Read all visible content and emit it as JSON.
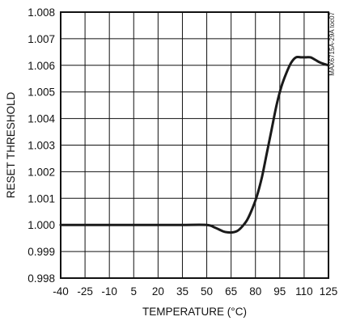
{
  "chart_data": {
    "type": "line",
    "title": "",
    "xlabel": "TEMPERATURE (°C)",
    "ylabel": "RESET THRESHOLD",
    "xlim": [
      -40,
      125
    ],
    "ylim": [
      0.998,
      1.008
    ],
    "x_ticks": [
      -40,
      -25,
      -10,
      5,
      20,
      35,
      50,
      65,
      80,
      95,
      110,
      125
    ],
    "y_ticks": [
      0.998,
      0.999,
      1.0,
      1.001,
      1.002,
      1.003,
      1.004,
      1.005,
      1.006,
      1.007,
      1.008
    ],
    "y_tick_labels": [
      "0.998",
      "0.999",
      "1.000",
      "1.001",
      "1.002",
      "1.003",
      "1.004",
      "1.005",
      "1.006",
      "1.007",
      "1.008"
    ],
    "grid": true,
    "legend": "none",
    "line_color": "#1a1a1a",
    "side_note": "MAX6715A-29A toc07",
    "series": [
      {
        "x": [
          -40,
          -25,
          -10,
          5,
          20,
          35,
          50,
          55,
          60,
          63,
          66,
          69,
          72,
          75,
          78,
          81,
          84,
          87,
          90,
          93,
          96,
          99,
          102,
          105,
          108,
          111,
          114,
          117,
          120,
          125
        ],
        "y": [
          1.0,
          1.0,
          1.0,
          1.0,
          1.0,
          1.0,
          1.0,
          0.9999,
          0.99976,
          0.99972,
          0.99972,
          0.99978,
          0.99995,
          1.0002,
          1.0006,
          1.0011,
          1.0018,
          1.0027,
          1.0036,
          1.0045,
          1.0052,
          1.0057,
          1.0061,
          1.0063,
          1.0063,
          1.0063,
          1.0063,
          1.0062,
          1.0061,
          1.006
        ]
      }
    ]
  }
}
